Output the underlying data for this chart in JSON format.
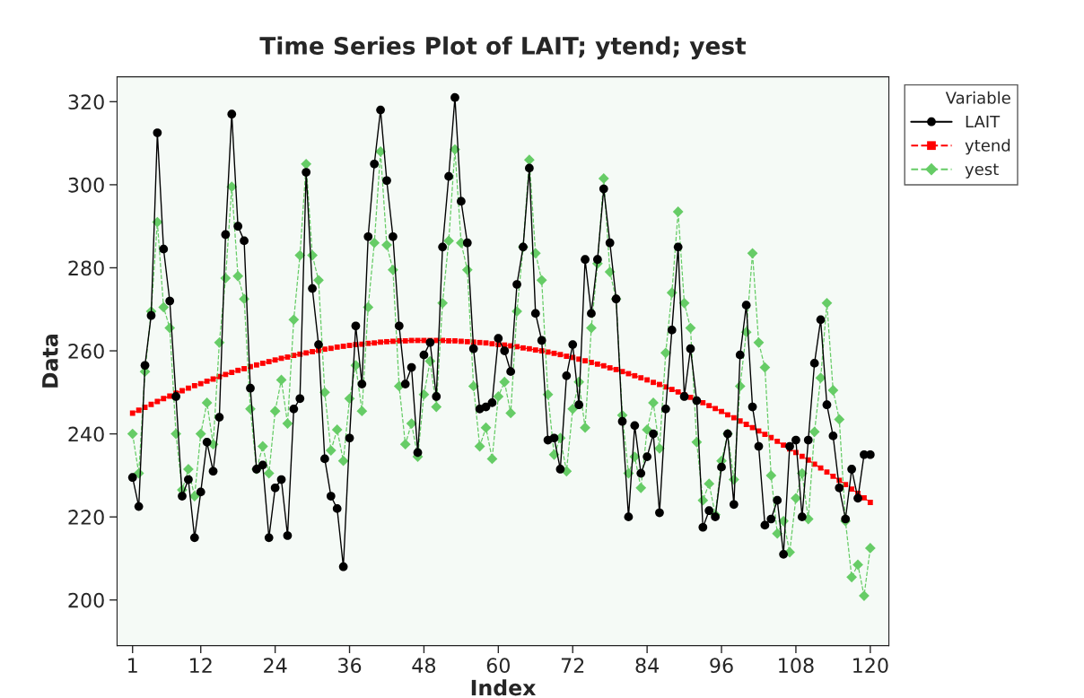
{
  "chart_data": {
    "type": "line",
    "title": "Time Series Plot of LAIT; ytend; yest",
    "xlabel": "Index",
    "ylabel": "Data",
    "legend_title": "Variable",
    "x": [
      1,
      2,
      3,
      4,
      5,
      6,
      7,
      8,
      9,
      10,
      11,
      12,
      13,
      14,
      15,
      16,
      17,
      18,
      19,
      20,
      21,
      22,
      23,
      24,
      25,
      26,
      27,
      28,
      29,
      30,
      31,
      32,
      33,
      34,
      35,
      36,
      37,
      38,
      39,
      40,
      41,
      42,
      43,
      44,
      45,
      46,
      47,
      48,
      49,
      50,
      51,
      52,
      53,
      54,
      55,
      56,
      57,
      58,
      59,
      60,
      61,
      62,
      63,
      64,
      65,
      66,
      67,
      68,
      69,
      70,
      71,
      72,
      73,
      74,
      75,
      76,
      77,
      78,
      79,
      80,
      81,
      82,
      83,
      84,
      85,
      86,
      87,
      88,
      89,
      90,
      91,
      92,
      93,
      94,
      95,
      96,
      97,
      98,
      99,
      100,
      101,
      102,
      103,
      104,
      105,
      106,
      107,
      108,
      109,
      110,
      111,
      112,
      113,
      114,
      115,
      116,
      117,
      118,
      119,
      120
    ],
    "series": [
      {
        "name": "LAIT",
        "color": "#000000",
        "marker": "circle",
        "line_style": "solid",
        "values": [
          229.5,
          222.5,
          256.5,
          268.5,
          312.5,
          284.5,
          272,
          249,
          225,
          229,
          215,
          226,
          238,
          231,
          244,
          288,
          317,
          290,
          286.5,
          251,
          231.5,
          232.5,
          215,
          227,
          229,
          215.5,
          246,
          248.5,
          303,
          275,
          261.5,
          234,
          225,
          222,
          208,
          239,
          266,
          252,
          287.5,
          305,
          318,
          301,
          287.5,
          266,
          252,
          256,
          235.5,
          259,
          262,
          249,
          285,
          302,
          321,
          296,
          286,
          260.5,
          246,
          246.5,
          247.5,
          263,
          260,
          255,
          276,
          285,
          304,
          269,
          262.5,
          238.5,
          239,
          231.5,
          254,
          261.5,
          247,
          282,
          269,
          282,
          299,
          286,
          272.5,
          243,
          220,
          242,
          230.5,
          234.5,
          240,
          221,
          246,
          265,
          285,
          249,
          260.5,
          248,
          217.5,
          221.5,
          220,
          232,
          240,
          223,
          259,
          271,
          246.5,
          237,
          218,
          219.5,
          224,
          211,
          237,
          238.5,
          220,
          238.5,
          257,
          267.5,
          247,
          239.5,
          227,
          219.5,
          231.5,
          224.5,
          235,
          235
        ]
      },
      {
        "name": "ytend",
        "color": "#ff0000",
        "marker": "square",
        "line_style": "dashed",
        "values": [
          245.0,
          245.7,
          246.4,
          247.1,
          247.8,
          248.5,
          249.1,
          249.8,
          250.4,
          251.0,
          251.6,
          252.1,
          252.7,
          253.2,
          253.8,
          254.3,
          254.8,
          255.3,
          255.7,
          256.2,
          256.6,
          257.0,
          257.4,
          257.8,
          258.2,
          258.5,
          258.9,
          259.2,
          259.5,
          259.8,
          260.1,
          260.4,
          260.6,
          260.9,
          261.1,
          261.3,
          261.5,
          261.6,
          261.8,
          261.9,
          262.1,
          262.2,
          262.3,
          262.4,
          262.4,
          262.5,
          262.5,
          262.5,
          262.5,
          262.5,
          262.5,
          262.4,
          262.4,
          262.3,
          262.2,
          262.1,
          262.0,
          261.9,
          261.7,
          261.5,
          261.4,
          261.2,
          261.0,
          260.7,
          260.5,
          260.2,
          260.0,
          259.7,
          259.4,
          259.1,
          258.7,
          258.4,
          258.0,
          257.6,
          257.2,
          256.8,
          256.4,
          255.9,
          255.5,
          255.0,
          254.5,
          254.0,
          253.5,
          253.0,
          252.4,
          251.9,
          251.3,
          250.7,
          250.1,
          249.4,
          248.8,
          248.1,
          247.5,
          246.8,
          246.1,
          245.4,
          244.6,
          243.9,
          243.1,
          242.3,
          241.5,
          240.7,
          239.9,
          239.1,
          238.2,
          237.3,
          236.4,
          235.5,
          234.6,
          233.7,
          232.7,
          231.8,
          230.8,
          229.8,
          228.8,
          227.8,
          226.7,
          225.7,
          224.6,
          223.5
        ]
      },
      {
        "name": "yest",
        "color": "#66cc66",
        "marker": "diamond",
        "line_style": "dashed",
        "values": [
          240,
          230.5,
          255,
          269.5,
          291,
          270.5,
          265.5,
          240,
          226.5,
          231.5,
          225,
          240,
          247.5,
          237.5,
          262,
          277.5,
          299.5,
          278,
          272.5,
          246,
          231.5,
          237,
          230.5,
          245.5,
          253,
          242.5,
          267.5,
          283,
          305,
          283,
          277,
          250,
          236,
          241,
          233.5,
          248.5,
          256.5,
          245.5,
          270.5,
          286,
          308,
          285.5,
          279.5,
          251.5,
          237.5,
          242.5,
          234.5,
          249.5,
          257.5,
          246.5,
          271.5,
          286.5,
          308.5,
          286,
          279.5,
          251.5,
          237,
          241.5,
          234,
          249,
          252.5,
          245,
          269.5,
          285,
          306,
          283.5,
          277,
          249.5,
          235,
          239,
          231,
          246,
          252.5,
          241.5,
          265.5,
          281,
          301.5,
          279,
          272.5,
          244.5,
          230.5,
          234.5,
          227,
          241,
          247.5,
          236.5,
          259.5,
          274,
          293.5,
          271.5,
          265.5,
          238,
          224,
          228,
          220.5,
          233.5,
          240,
          229,
          251.5,
          264.5,
          283.5,
          262,
          256,
          230,
          216,
          219,
          211.5,
          224.5,
          230.5,
          219.5,
          240.5,
          253.5,
          271.5,
          250.5,
          243.5,
          219,
          205.5,
          208.5,
          201,
          212.5
        ]
      }
    ],
    "xlim": [
      -1.5,
      123
    ],
    "xticks": [
      1,
      12,
      24,
      36,
      48,
      60,
      72,
      84,
      96,
      108,
      120
    ],
    "ylim": [
      189,
      326
    ],
    "yticks": [
      200,
      220,
      240,
      260,
      280,
      300,
      320
    ],
    "grid": false,
    "legend": "right"
  }
}
